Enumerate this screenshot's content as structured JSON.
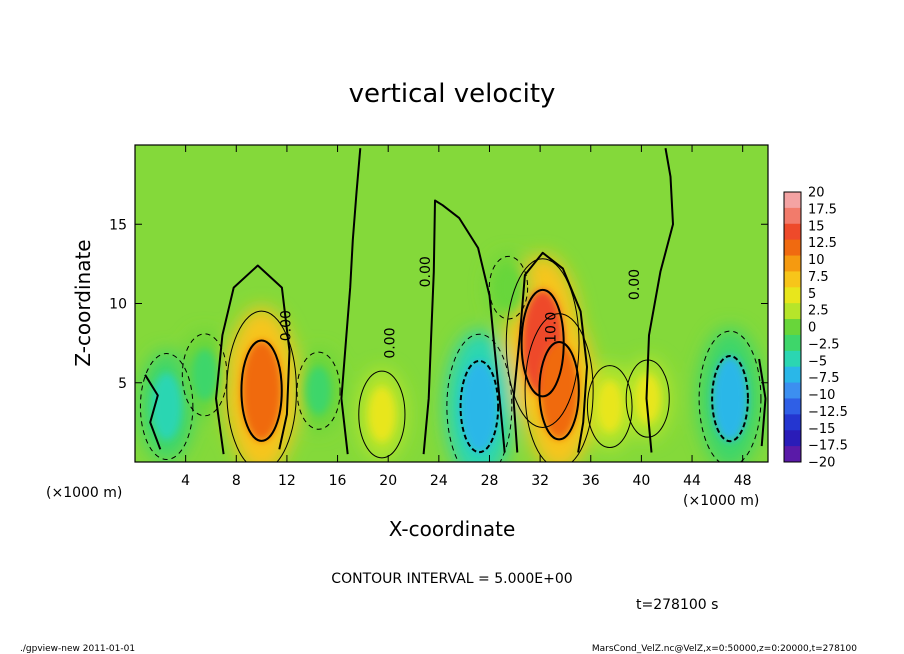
{
  "chart_data": {
    "type": "heatmap",
    "title": "vertical velocity",
    "xlabel": "X-coordinate",
    "ylabel": "Z-coordinate",
    "x_unit": "(×1000 m)",
    "y_unit": "(×1000 m)",
    "xlim": [
      0,
      50
    ],
    "ylim": [
      0,
      20
    ],
    "x_ticks": [
      4,
      8,
      12,
      16,
      20,
      24,
      28,
      32,
      36,
      40,
      44,
      48
    ],
    "y_ticks": [
      5,
      10,
      15
    ],
    "contour_interval_text": "CONTOUR INTERVAL = 5.000E+00",
    "time_text": "t=278100 s",
    "contour_labels": [
      "0.00",
      "0.00",
      "0.00",
      "0.00",
      "10.0"
    ],
    "colorbar": {
      "levels": [
        20,
        17.5,
        15,
        12.5,
        10,
        7.5,
        5,
        2.5,
        0,
        -2.5,
        -5,
        -7.5,
        -10,
        -12.5,
        -15,
        -17.5,
        -20
      ],
      "colors": [
        "#f4a3a3",
        "#f27b6b",
        "#ee4a2a",
        "#f06a10",
        "#f59a10",
        "#f7c51a",
        "#e8e61c",
        "#b6e52a",
        "#68d63a",
        "#3ed66a",
        "#2bd6b2",
        "#2ab7e8",
        "#3c8ff0",
        "#2f5fe6",
        "#2436d0",
        "#2a1cb8",
        "#5a1aa8"
      ],
      "level_labels": [
        "20",
        "17.5",
        "15",
        "12.5",
        "10",
        "7.5",
        "5",
        "2.5",
        "0",
        "−2.5",
        "−5",
        "−7.5",
        "−10",
        "−12.5",
        "−15",
        "−17.5",
        "−20"
      ]
    },
    "features": [
      {
        "x": 10,
        "z": 4.5,
        "value": 11.5
      },
      {
        "x": 32.2,
        "z": 7.5,
        "value": 12.5
      },
      {
        "x": 33.5,
        "z": 4.5,
        "value": 11
      },
      {
        "x": 27.2,
        "z": 3.5,
        "value": -10
      },
      {
        "x": 47.0,
        "z": 4.0,
        "value": -9
      },
      {
        "x": 2.5,
        "z": 3.5,
        "value": -6
      },
      {
        "x": 19.5,
        "z": 3.0,
        "value": 4
      },
      {
        "x": 37.5,
        "z": 3.5,
        "value": 3.5
      },
      {
        "x": 40.5,
        "z": 4.0,
        "value": 3
      },
      {
        "x": 14.5,
        "z": 4.5,
        "value": -3
      },
      {
        "x": 29.5,
        "z": 11.0,
        "value": -1.5
      },
      {
        "x": 5.5,
        "z": 5.5,
        "value": -3.5
      }
    ],
    "grid": false
  },
  "footer": {
    "left": "./gpview-new  2011-01-01",
    "right": "MarsCond_VelZ.nc@VelZ,x=0:50000,z=0:20000,t=278100"
  }
}
